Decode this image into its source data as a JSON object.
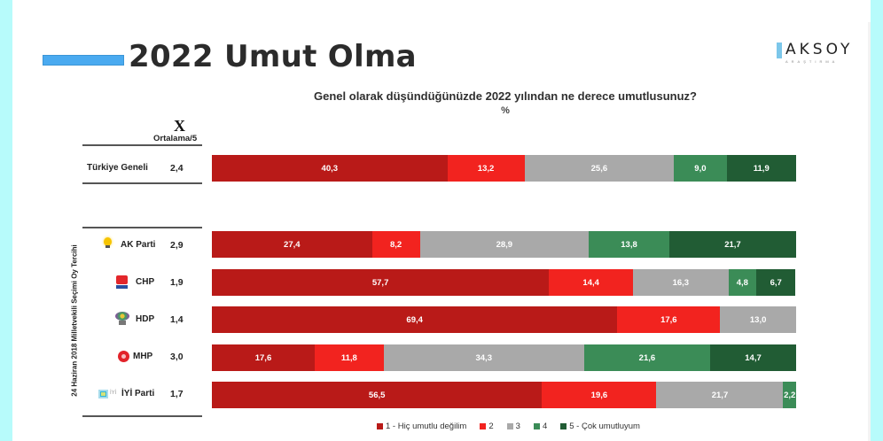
{
  "slide": {
    "title": "2022 Umut Olma",
    "logo": {
      "name": "AKSOY",
      "subtitle": "ARAŞTIRMA"
    },
    "question": "Genel olarak düşündüğünüzde 2022 yılından ne derece umutlusunuz?",
    "unit": "%",
    "mean_symbol": "X",
    "mean_header": "Ortalama/5",
    "group_label": "24 Haziran 2018 Milletvekili Seçimi Oy Tercihi"
  },
  "colors": {
    "c1": "#b91a18",
    "c2": "#f2231f",
    "c3": "#a9a9a9",
    "c4": "#3b8c57",
    "c5": "#215c34",
    "title_accent": "#4aaaf0",
    "side_stripe": "#b7fbfb"
  },
  "rows": [
    {
      "label": "Türkiye Geneli",
      "avg": "2,4",
      "icon": "none",
      "values": [
        "40,3",
        "13,2",
        "25,6",
        "9,0",
        "11,9"
      ]
    },
    {
      "label": "AK Parti",
      "avg": "2,9",
      "icon": "akp-bulb-icon",
      "values": [
        "27,4",
        "8,2",
        "28,9",
        "13,8",
        "21,7"
      ]
    },
    {
      "label": "CHP",
      "avg": "1,9",
      "icon": "chp-logo-icon",
      "values": [
        "57,7",
        "14,4",
        "16,3",
        "4,8",
        "6,7"
      ]
    },
    {
      "label": "HDP",
      "avg": "1,4",
      "icon": "hdp-tree-icon",
      "values": [
        "69,4",
        "17,6",
        "13,0",
        "",
        ""
      ]
    },
    {
      "label": "MHP",
      "avg": "3,0",
      "icon": "mhp-crescent-icon",
      "values": [
        "17,6",
        "11,8",
        "34,3",
        "21,6",
        "14,7"
      ]
    },
    {
      "label": "İYİ Parti",
      "avg": "1,7",
      "icon": "iyi-logo-icon",
      "values": [
        "56,5",
        "19,6",
        "21,7",
        "2,2",
        ""
      ]
    }
  ],
  "legend": [
    {
      "label": "1 - Hiç umutlu değilim"
    },
    {
      "label": "2"
    },
    {
      "label": "3"
    },
    {
      "label": "4"
    },
    {
      "label": "5 - Çok umutluyum"
    }
  ],
  "chart_data": {
    "type": "bar",
    "orientation": "horizontal",
    "stacked": true,
    "title": "Genel olarak düşündüğünüzde 2022 yılından ne derece umutlusunuz?",
    "subtitle": "%",
    "slide_title": "2022 Umut Olma",
    "categories": [
      "Türkiye Geneli",
      "AK Parti",
      "CHP",
      "HDP",
      "MHP",
      "İYİ Parti"
    ],
    "means": [
      2.4,
      2.9,
      1.9,
      1.4,
      3.0,
      1.7
    ],
    "series": [
      {
        "name": "1 - Hiç umutlu değilim",
        "color": "#b91a18",
        "values": [
          40.3,
          27.4,
          57.7,
          69.4,
          17.6,
          56.5
        ]
      },
      {
        "name": "2",
        "color": "#f2231f",
        "values": [
          13.2,
          8.2,
          14.4,
          17.6,
          11.8,
          19.6
        ]
      },
      {
        "name": "3",
        "color": "#a9a9a9",
        "values": [
          25.6,
          28.9,
          16.3,
          13.0,
          34.3,
          21.7
        ]
      },
      {
        "name": "4",
        "color": "#3b8c57",
        "values": [
          9.0,
          13.8,
          4.8,
          0,
          21.6,
          2.2
        ]
      },
      {
        "name": "5 - Çok umutluyum",
        "color": "#215c34",
        "values": [
          11.9,
          21.7,
          6.7,
          0,
          14.7,
          0
        ]
      }
    ],
    "xlim": [
      0,
      100
    ],
    "grid": false,
    "legend_position": "bottom",
    "row_group_label": "24 Haziran 2018 Milletvekili Seçimi Oy Tercihi"
  }
}
